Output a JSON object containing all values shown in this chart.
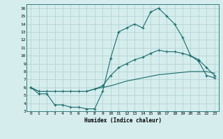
{
  "xlabel": "Humidex (Indice chaleur)",
  "background_color": "#d5eded",
  "grid_color": "#b0cece",
  "line_color": "#1a6b6b",
  "xlim": [
    -0.5,
    23.5
  ],
  "ylim": [
    3,
    16.5
  ],
  "xticks": [
    0,
    1,
    2,
    3,
    4,
    5,
    6,
    7,
    8,
    9,
    10,
    11,
    12,
    13,
    14,
    15,
    16,
    17,
    18,
    19,
    20,
    21,
    22,
    23
  ],
  "yticks": [
    3,
    4,
    5,
    6,
    7,
    8,
    9,
    10,
    11,
    12,
    13,
    14,
    15,
    16
  ],
  "series1_x": [
    0,
    1,
    2,
    3,
    4,
    5,
    6,
    7,
    8,
    9,
    10,
    11,
    12,
    13,
    14,
    15,
    16,
    17,
    18,
    19,
    20,
    21,
    22,
    23
  ],
  "series1_y": [
    6.0,
    5.2,
    5.2,
    3.8,
    3.8,
    3.5,
    3.5,
    3.3,
    3.3,
    5.5,
    9.7,
    13.0,
    13.5,
    14.0,
    13.5,
    15.5,
    16.0,
    15.0,
    14.0,
    12.3,
    10.0,
    9.3,
    7.5,
    7.2
  ],
  "series2_x": [
    0,
    1,
    2,
    3,
    4,
    5,
    6,
    7,
    8,
    9,
    10,
    11,
    12,
    13,
    14,
    15,
    16,
    17,
    18,
    19,
    20,
    21,
    22,
    23
  ],
  "series2_y": [
    6.0,
    5.5,
    5.5,
    5.5,
    5.5,
    5.5,
    5.5,
    5.5,
    5.8,
    6.2,
    7.5,
    8.5,
    9.0,
    9.5,
    9.8,
    10.3,
    10.7,
    10.5,
    10.5,
    10.3,
    10.0,
    9.5,
    8.5,
    7.5
  ],
  "series3_x": [
    0,
    1,
    2,
    3,
    4,
    5,
    6,
    7,
    8,
    9,
    10,
    11,
    12,
    13,
    14,
    15,
    16,
    17,
    18,
    19,
    20,
    21,
    22,
    23
  ],
  "series3_y": [
    6.0,
    5.5,
    5.5,
    5.5,
    5.5,
    5.5,
    5.5,
    5.5,
    5.8,
    6.0,
    6.2,
    6.5,
    6.8,
    7.0,
    7.2,
    7.4,
    7.6,
    7.7,
    7.8,
    7.9,
    8.0,
    8.0,
    8.0,
    7.8
  ]
}
